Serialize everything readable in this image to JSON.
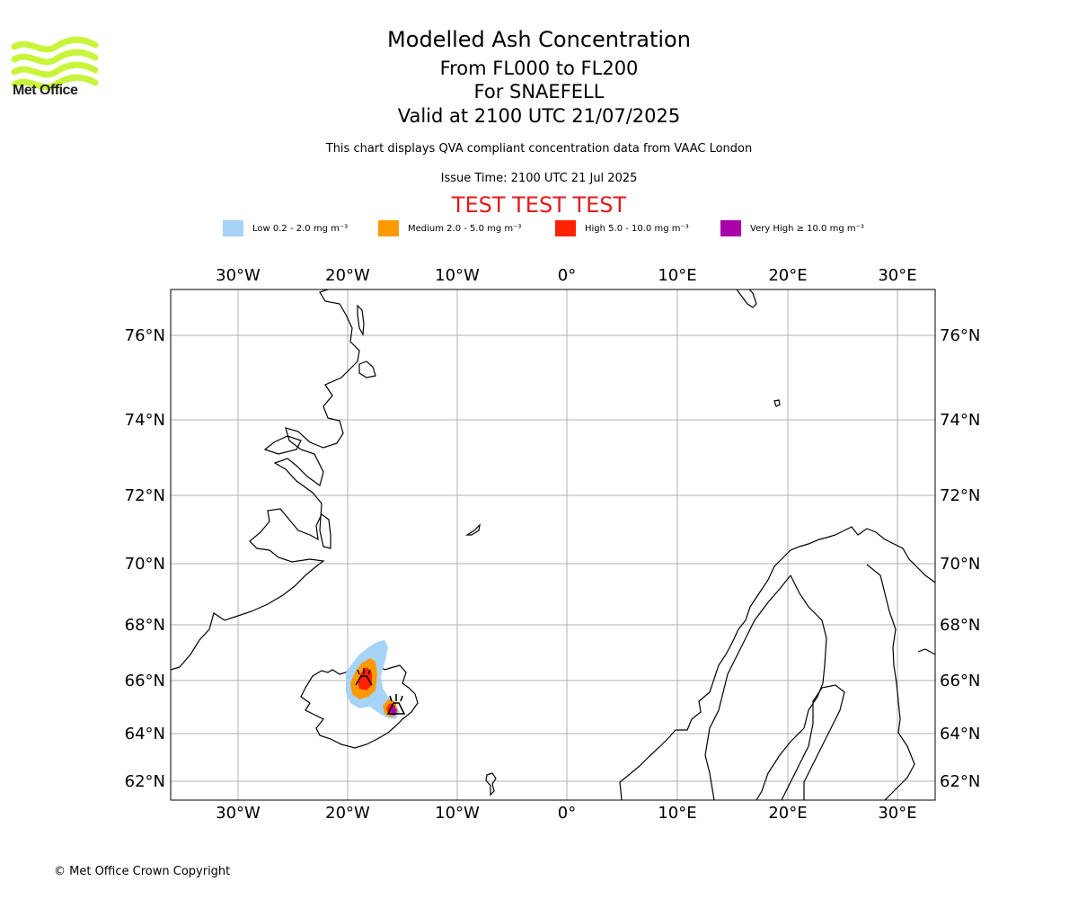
{
  "header": {
    "title": "Modelled Ash Concentration",
    "levels": "From FL000 to FL200",
    "volcano": "For SNAEFELL",
    "valid": "Valid at 2100 UTC 21/07/2025",
    "description": "This chart displays QVA compliant concentration data from VAAC London",
    "issue_time": "Issue Time: 2100 UTC 21 Jul 2025",
    "test_banner": "TEST TEST TEST"
  },
  "logo": {
    "name": "Met Office",
    "icon": "met-office-waves-icon",
    "color": "#c8f53a"
  },
  "legend": [
    {
      "label": "Low 0.2 - 2.0 mg m⁻³",
      "color": "#a6d3f8"
    },
    {
      "label": "Medium 2.0 - 5.0 mg m⁻³",
      "color": "#ff9900"
    },
    {
      "label": "High 5.0 - 10.0 mg m⁻³",
      "color": "#ff2200"
    },
    {
      "label": "Very High ≥ 10.0 mg m⁻³",
      "color": "#aa00aa"
    }
  ],
  "map": {
    "lon_ticks": [
      "30°W",
      "20°W",
      "10°W",
      "0°",
      "10°E",
      "20°E",
      "30°E"
    ],
    "lat_ticks": [
      "76°N",
      "74°N",
      "72°N",
      "70°N",
      "68°N",
      "66°N",
      "64°N",
      "62°N"
    ],
    "volcano_icon": "volcano-icon"
  },
  "footer": {
    "copyright": "© Met Office Crown Copyright"
  }
}
